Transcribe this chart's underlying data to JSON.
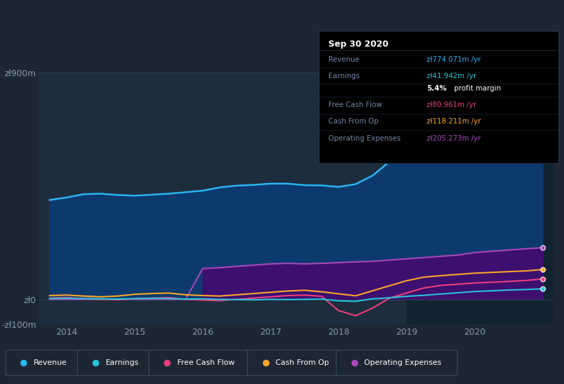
{
  "bg_color": "#1c2733",
  "plot_bg_color": "#1e2d3d",
  "years": [
    2013.75,
    2014.0,
    2014.25,
    2014.5,
    2014.75,
    2015.0,
    2015.25,
    2015.5,
    2015.75,
    2016.0,
    2016.25,
    2016.5,
    2016.75,
    2017.0,
    2017.25,
    2017.5,
    2017.75,
    2018.0,
    2018.25,
    2018.5,
    2018.75,
    2019.0,
    2019.25,
    2019.5,
    2019.75,
    2020.0,
    2020.25,
    2020.5,
    2020.75,
    2021.0
  ],
  "revenue": [
    395,
    405,
    418,
    420,
    415,
    412,
    416,
    420,
    426,
    432,
    445,
    452,
    455,
    460,
    460,
    454,
    453,
    447,
    458,
    492,
    548,
    598,
    655,
    705,
    722,
    732,
    720,
    712,
    742,
    774
  ],
  "earnings": [
    3,
    4,
    3,
    2,
    1,
    3,
    4,
    3,
    1,
    2,
    0,
    -1,
    -2,
    0,
    -1,
    0,
    1,
    -6,
    -8,
    2,
    6,
    12,
    16,
    21,
    26,
    31,
    34,
    37,
    39,
    41.942
  ],
  "free_cash_flow": [
    5,
    7,
    3,
    0,
    -2,
    3,
    5,
    7,
    0,
    -3,
    -5,
    0,
    5,
    10,
    15,
    17,
    12,
    -45,
    -65,
    -35,
    5,
    25,
    45,
    55,
    60,
    65,
    68,
    71,
    75,
    80.961
  ],
  "cash_from_op": [
    15,
    17,
    13,
    10,
    13,
    20,
    23,
    25,
    18,
    15,
    13,
    18,
    23,
    28,
    33,
    36,
    30,
    22,
    14,
    34,
    54,
    74,
    88,
    94,
    99,
    104,
    107,
    110,
    113,
    118.211
  ],
  "operating_expenses": [
    0,
    0,
    0,
    0,
    0,
    0,
    0,
    0,
    0,
    122,
    126,
    131,
    136,
    141,
    143,
    141,
    143,
    146,
    149,
    151,
    156,
    161,
    166,
    171,
    176,
    186,
    191,
    196,
    201,
    205.273
  ],
  "revenue_color": "#29b6f6",
  "earnings_color": "#26c6da",
  "free_cash_flow_color": "#ec407a",
  "cash_from_op_color": "#ffa726",
  "operating_expenses_color": "#ab47bc",
  "revenue_fill": "#0d3a6e",
  "opex_fill": "#3d1070",
  "ylim": [
    -100,
    900
  ],
  "xlim_min": 2013.6,
  "xlim_max": 2021.15,
  "xticks": [
    2014,
    2015,
    2016,
    2017,
    2018,
    2019,
    2020
  ],
  "tooltip_header": "Sep 30 2020",
  "tooltip_rows": [
    {
      "label": "Revenue",
      "value": "zł774.071m /yr",
      "vcolor": "#29b6f6",
      "special": false
    },
    {
      "label": "Earnings",
      "value": "zł41.942m /yr",
      "vcolor": "#26c6da",
      "special": false
    },
    {
      "label": "",
      "value": "",
      "vcolor": "",
      "special": true
    },
    {
      "label": "Free Cash Flow",
      "value": "zł80.961m /yr",
      "vcolor": "#ec407a",
      "special": false
    },
    {
      "label": "Cash From Op",
      "value": "zł118.211m /yr",
      "vcolor": "#ffa726",
      "special": false
    },
    {
      "label": "Operating Expenses",
      "value": "zł205.273m /yr",
      "vcolor": "#ab47bc",
      "special": false
    }
  ],
  "legend_items": [
    {
      "label": "Revenue",
      "color": "#29b6f6"
    },
    {
      "label": "Earnings",
      "color": "#26c6da"
    },
    {
      "label": "Free Cash Flow",
      "color": "#ec407a"
    },
    {
      "label": "Cash From Op",
      "color": "#ffa726"
    },
    {
      "label": "Operating Expenses",
      "color": "#ab47bc"
    }
  ],
  "end_markers": [
    {
      "y": 774,
      "color": "#29b6f6"
    },
    {
      "y": 205.273,
      "color": "#ab47bc"
    },
    {
      "y": 118.211,
      "color": "#ffa726"
    },
    {
      "y": 80.961,
      "color": "#ec407a"
    },
    {
      "y": 41.942,
      "color": "#26c6da"
    }
  ]
}
